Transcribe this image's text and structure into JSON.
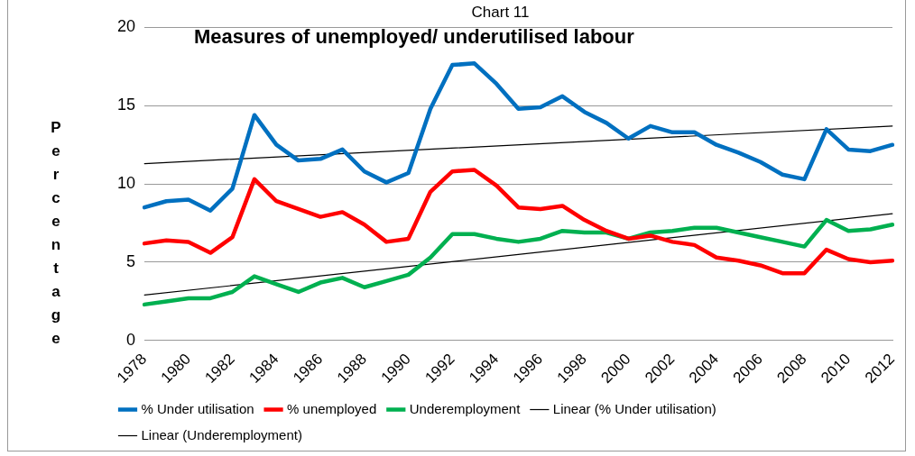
{
  "chart_data": {
    "type": "line",
    "title": "Chart 11",
    "subtitle": "Measures of unemployed/ underutilised labour",
    "ylabel": "Percentage",
    "categories": [
      "1978",
      null,
      "1980",
      null,
      "1982",
      null,
      "1984",
      null,
      "1986",
      null,
      "1988",
      null,
      "1990",
      null,
      "1992",
      null,
      "1994",
      null,
      "1996",
      null,
      "1998",
      null,
      "2000",
      null,
      "2002",
      null,
      "2004",
      null,
      "2006",
      null,
      "2008",
      null,
      "2010",
      null,
      "2012"
    ],
    "series": [
      {
        "name": "% Under utilisation",
        "color": "#0070c0",
        "values": [
          8.5,
          8.9,
          9.0,
          8.3,
          9.7,
          14.4,
          12.5,
          11.5,
          11.6,
          12.2,
          10.8,
          10.1,
          10.7,
          14.8,
          17.6,
          17.7,
          16.4,
          14.8,
          14.9,
          15.6,
          14.6,
          13.9,
          12.9,
          13.7,
          13.3,
          13.3,
          12.5,
          12.0,
          11.4,
          10.6,
          10.3,
          13.5,
          12.2,
          12.1,
          12.5
        ]
      },
      {
        "name": "% unemployed",
        "color": "#ff0000",
        "values": [
          6.2,
          6.4,
          6.3,
          5.6,
          6.6,
          10.3,
          8.9,
          8.4,
          7.9,
          8.2,
          7.4,
          6.3,
          6.5,
          9.5,
          10.8,
          10.9,
          9.9,
          8.5,
          8.4,
          8.6,
          7.7,
          7.0,
          6.5,
          6.7,
          6.3,
          6.1,
          5.3,
          5.1,
          4.8,
          4.3,
          4.3,
          5.8,
          5.2,
          5.0,
          5.1
        ]
      },
      {
        "name": "Underemployment",
        "color": "#00b050",
        "values": [
          2.3,
          2.5,
          2.7,
          2.7,
          3.1,
          4.1,
          3.6,
          3.1,
          3.7,
          4.0,
          3.4,
          3.8,
          4.2,
          5.3,
          6.8,
          6.8,
          6.5,
          6.3,
          6.5,
          7.0,
          6.9,
          6.9,
          6.5,
          6.9,
          7.0,
          7.2,
          7.2,
          6.9,
          6.6,
          6.3,
          6.0,
          7.7,
          7.0,
          7.1,
          7.4
        ]
      },
      {
        "name": "Linear (% Under utilisation)",
        "color": "#000000",
        "type": "line",
        "values": [
          11.3,
          null,
          null,
          null,
          null,
          null,
          null,
          null,
          null,
          null,
          null,
          null,
          null,
          null,
          null,
          null,
          null,
          null,
          null,
          null,
          null,
          null,
          null,
          null,
          null,
          null,
          null,
          null,
          null,
          null,
          null,
          null,
          null,
          null,
          13.7
        ]
      },
      {
        "name": "Linear (Underemployment)",
        "color": "#000000",
        "type": "line",
        "values": [
          2.9,
          null,
          null,
          null,
          null,
          null,
          null,
          null,
          null,
          null,
          null,
          null,
          null,
          null,
          null,
          null,
          null,
          null,
          null,
          null,
          null,
          null,
          null,
          null,
          null,
          null,
          null,
          null,
          null,
          null,
          null,
          null,
          null,
          null,
          8.1
        ]
      }
    ],
    "ylim": [
      0,
      20
    ],
    "yticks": [
      0,
      5,
      10,
      15,
      20
    ],
    "grid": "y",
    "legend": "bottom",
    "marker": "none",
    "line_style": "solid"
  }
}
